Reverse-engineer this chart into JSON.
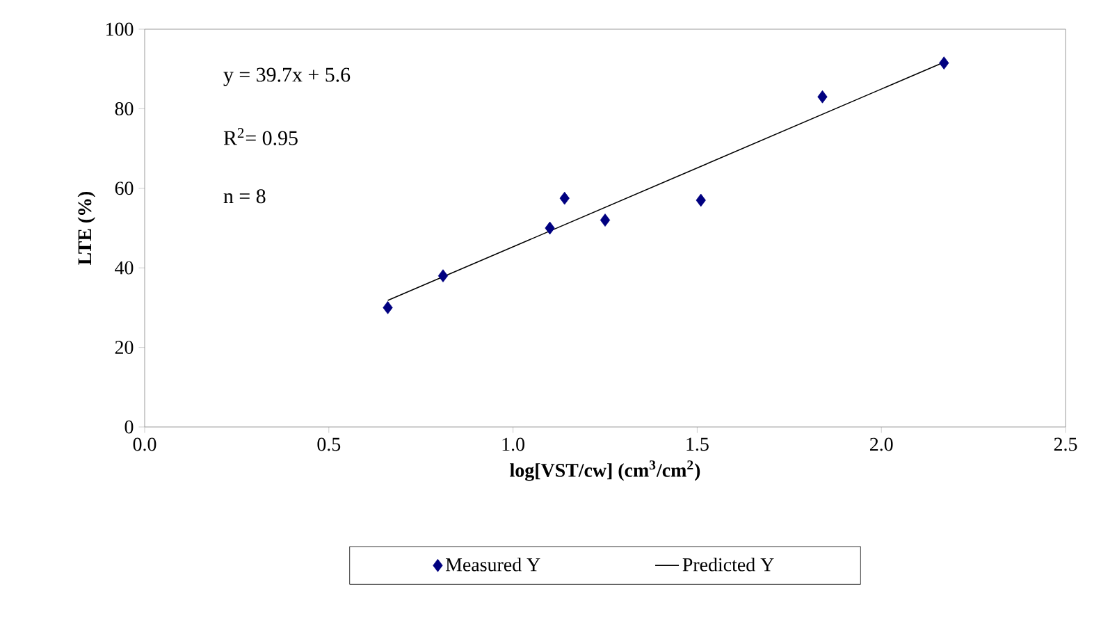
{
  "chart_data": {
    "type": "scatter",
    "xlabel": "log[VST/cw] (cm$^{3}$/cm$^{2}$)",
    "ylabel": "LTE (%)",
    "annotations": [
      "y = 39.7x + 5.6",
      "R$^{2}$= 0.95",
      "n = 8"
    ],
    "xlim": [
      0,
      2.5
    ],
    "xticks": [
      {
        "value": 0,
        "label": "0.0"
      },
      {
        "value": 0.5,
        "label": "0.5"
      },
      {
        "value": 1,
        "label": "1.0"
      },
      {
        "value": 1.5,
        "label": "1.5"
      },
      {
        "value": 2,
        "label": "2.0"
      },
      {
        "value": 2.5,
        "label": "2.5"
      }
    ],
    "ylim": [
      0,
      100
    ],
    "yticks": [
      0,
      20,
      40,
      60,
      80,
      100
    ],
    "legend": "bottom",
    "series": [
      {
        "name": "Measured Y",
        "marker": "diamond",
        "color": "#000080",
        "x": [
          0.66,
          0.81,
          1.1,
          1.14,
          1.25,
          1.51,
          1.84,
          2.17
        ],
        "values": [
          30,
          38,
          50,
          57.5,
          52,
          57,
          83,
          91.5
        ]
      },
      {
        "name": "Predicted Y",
        "type": "line",
        "marker": "none",
        "color": "#000000",
        "x": [
          0.66,
          2.17
        ],
        "values": [
          31.8,
          91.7
        ]
      }
    ]
  }
}
